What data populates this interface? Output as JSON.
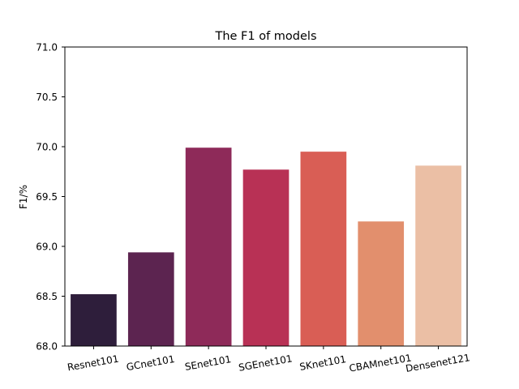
{
  "chart_data": {
    "type": "bar",
    "title": "The F1 of models",
    "xlabel": "",
    "ylabel": "F1/%",
    "ylim": [
      68.0,
      71.0
    ],
    "yticks": [
      "68.0",
      "68.5",
      "69.0",
      "69.5",
      "70.0",
      "70.5",
      "71.0"
    ],
    "categories": [
      "Resnet101",
      "GCnet101",
      "SEnet101",
      "SGEnet101",
      "SKnet101",
      "CBAMnet101",
      "Densenet121"
    ],
    "values": [
      68.52,
      68.94,
      69.99,
      69.77,
      69.95,
      69.25,
      69.81
    ],
    "colors": [
      "#2e1e3b",
      "#5c2450",
      "#8e2a59",
      "#b83155",
      "#d95e55",
      "#e28f6d",
      "#ebbfa5"
    ],
    "grid": false,
    "x_tick_rotation": "slight"
  }
}
